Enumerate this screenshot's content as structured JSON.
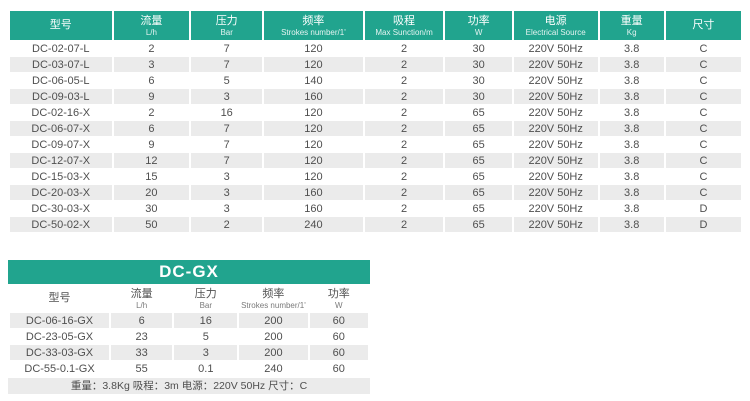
{
  "colors": {
    "teal_header": "#21a48e",
    "alt_row": "#ebebeb",
    "body_text": "#4f4f4f",
    "header_text": "#ffffff"
  },
  "main_table": {
    "columns": [
      {
        "zh": "型号",
        "en": ""
      },
      {
        "zh": "流量",
        "en": "L/h"
      },
      {
        "zh": "压力",
        "en": "Bar"
      },
      {
        "zh": "频率",
        "en": "Strokes number/1'"
      },
      {
        "zh": "吸程",
        "en": "Max Sunction/m"
      },
      {
        "zh": "功率",
        "en": "W"
      },
      {
        "zh": "电源",
        "en": "Electrical Source"
      },
      {
        "zh": "重量",
        "en": "Kg"
      },
      {
        "zh": "尺寸",
        "en": ""
      }
    ],
    "rows": [
      [
        "DC-02-07-L",
        "2",
        "7",
        "120",
        "2",
        "30",
        "220V 50Hz",
        "3.8",
        "C"
      ],
      [
        "DC-03-07-L",
        "3",
        "7",
        "120",
        "2",
        "30",
        "220V 50Hz",
        "3.8",
        "C"
      ],
      [
        "DC-06-05-L",
        "6",
        "5",
        "140",
        "2",
        "30",
        "220V 50Hz",
        "3.8",
        "C"
      ],
      [
        "DC-09-03-L",
        "9",
        "3",
        "160",
        "2",
        "30",
        "220V 50Hz",
        "3.8",
        "C"
      ],
      [
        "DC-02-16-X",
        "2",
        "16",
        "120",
        "2",
        "65",
        "220V 50Hz",
        "3.8",
        "C"
      ],
      [
        "DC-06-07-X",
        "6",
        "7",
        "120",
        "2",
        "65",
        "220V 50Hz",
        "3.8",
        "C"
      ],
      [
        "DC-09-07-X",
        "9",
        "7",
        "120",
        "2",
        "65",
        "220V 50Hz",
        "3.8",
        "C"
      ],
      [
        "DC-12-07-X",
        "12",
        "7",
        "120",
        "2",
        "65",
        "220V 50Hz",
        "3.8",
        "C"
      ],
      [
        "DC-15-03-X",
        "15",
        "3",
        "120",
        "2",
        "65",
        "220V 50Hz",
        "3.8",
        "C"
      ],
      [
        "DC-20-03-X",
        "20",
        "3",
        "160",
        "2",
        "65",
        "220V 50Hz",
        "3.8",
        "C"
      ],
      [
        "DC-30-03-X",
        "30",
        "3",
        "160",
        "2",
        "65",
        "220V 50Hz",
        "3.8",
        "D"
      ],
      [
        "DC-50-02-X",
        "50",
        "2",
        "240",
        "2",
        "65",
        "220V 50Hz",
        "3.8",
        "D"
      ]
    ]
  },
  "gx_table": {
    "title": "DC-GX",
    "columns": [
      {
        "zh": "型号",
        "en": ""
      },
      {
        "zh": "流量",
        "en": "L/h"
      },
      {
        "zh": "压力",
        "en": "Bar"
      },
      {
        "zh": "频率",
        "en": "Strokes number/1'"
      },
      {
        "zh": "功率",
        "en": "W"
      }
    ],
    "rows": [
      [
        "DC-06-16-GX",
        "6",
        "16",
        "200",
        "60"
      ],
      [
        "DC-23-05-GX",
        "23",
        "5",
        "200",
        "60"
      ],
      [
        "DC-33-03-GX",
        "33",
        "3",
        "200",
        "60"
      ],
      [
        "DC-55-0.1-GX",
        "55",
        "0.1",
        "240",
        "60"
      ]
    ],
    "footer": "重量：3.8Kg 吸程：3m 电源：220V 50Hz 尺寸：C"
  }
}
